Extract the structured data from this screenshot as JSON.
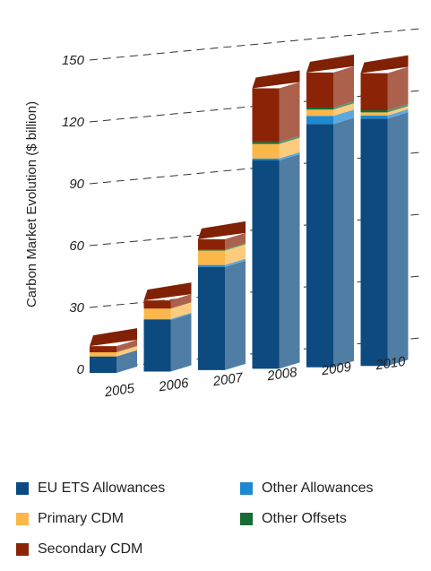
{
  "chart_data": {
    "type": "bar",
    "stacked": true,
    "projection": "3d-perspective",
    "ylabel": "Carbon Market Evolution ($ billion)",
    "xlabel": "",
    "ylim": [
      0,
      150
    ],
    "yticks": [
      0,
      30,
      60,
      90,
      120,
      150
    ],
    "grid": "dashed-horizontal",
    "legend_position": "bottom",
    "categories": [
      "2005",
      "2006",
      "2007",
      "2008",
      "2009",
      "2010"
    ],
    "series": [
      {
        "name": "EU ETS Allowances",
        "color": "#0c4a80",
        "values": [
          8,
          25,
          50,
          101,
          118,
          120
        ]
      },
      {
        "name": "Other Allowances",
        "color": "#1e88d0",
        "values": [
          0,
          0.5,
          1,
          1,
          4,
          1.5
        ]
      },
      {
        "name": "Primary CDM",
        "color": "#fbb74a",
        "values": [
          2,
          5,
          7,
          7,
          3,
          1.5
        ]
      },
      {
        "name": "Other Offsets",
        "color": "#176b34",
        "values": [
          0,
          0,
          0.5,
          1,
          1,
          1
        ]
      },
      {
        "name": "Secondary CDM",
        "color": "#8b2406",
        "values": [
          3,
          4,
          5,
          26,
          17,
          18
        ]
      }
    ]
  }
}
